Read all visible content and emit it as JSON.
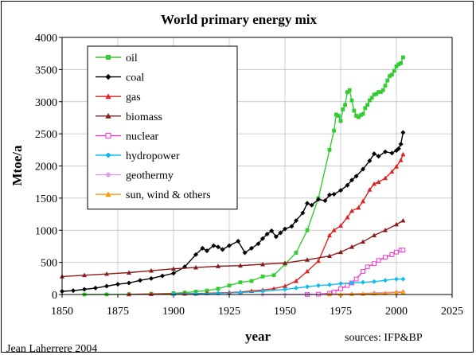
{
  "chart_data": {
    "type": "line",
    "title": "World primary energy mix",
    "xlabel": "year",
    "ylabel": "Mtoe/a",
    "xlim": [
      1850,
      2025
    ],
    "ylim": [
      0,
      4000
    ],
    "xticks": [
      1850,
      1875,
      1900,
      1925,
      1950,
      1975,
      2000,
      2025
    ],
    "yticks": [
      0,
      500,
      1000,
      1500,
      2000,
      2500,
      3000,
      3500,
      4000
    ],
    "grid": true,
    "legend_position": "top-left",
    "source_note": "sources: IFP&BP",
    "author_note": "Jean Laherrere 2004",
    "series": [
      {
        "name": "oil",
        "color": "#33cc33",
        "marker": "square",
        "x": [
          1860,
          1870,
          1880,
          1890,
          1900,
          1905,
          1910,
          1915,
          1920,
          1925,
          1930,
          1935,
          1940,
          1945,
          1950,
          1955,
          1960,
          1965,
          1970,
          1972,
          1973,
          1974,
          1975,
          1976,
          1977,
          1978,
          1979,
          1980,
          1981,
          1982,
          1983,
          1984,
          1985,
          1986,
          1987,
          1988,
          1989,
          1990,
          1991,
          1992,
          1993,
          1994,
          1995,
          1996,
          1997,
          1998,
          1999,
          2000,
          2001,
          2002,
          2003
        ],
        "y": [
          0,
          1,
          4,
          10,
          20,
          30,
          45,
          60,
          90,
          140,
          190,
          210,
          280,
          300,
          470,
          650,
          1000,
          1500,
          2250,
          2550,
          2800,
          2780,
          2700,
          2880,
          2950,
          3150,
          3180,
          3020,
          2860,
          2780,
          2760,
          2790,
          2810,
          2900,
          2950,
          3020,
          3060,
          3110,
          3120,
          3150,
          3150,
          3180,
          3250,
          3330,
          3400,
          3420,
          3480,
          3550,
          3580,
          3600,
          3690
        ]
      },
      {
        "name": "coal",
        "color": "#000000",
        "marker": "diamond",
        "x": [
          1850,
          1855,
          1860,
          1865,
          1870,
          1875,
          1880,
          1885,
          1890,
          1895,
          1900,
          1905,
          1910,
          1913,
          1915,
          1918,
          1920,
          1922,
          1925,
          1929,
          1932,
          1935,
          1938,
          1940,
          1942,
          1944,
          1946,
          1948,
          1950,
          1953,
          1955,
          1958,
          1960,
          1962,
          1965,
          1968,
          1970,
          1972,
          1975,
          1978,
          1980,
          1982,
          1985,
          1988,
          1990,
          1992,
          1995,
          1998,
          2000,
          2001,
          2002,
          2003
        ],
        "y": [
          50,
          60,
          80,
          100,
          130,
          160,
          180,
          220,
          250,
          290,
          330,
          430,
          620,
          720,
          680,
          760,
          740,
          700,
          760,
          830,
          650,
          720,
          790,
          870,
          940,
          990,
          900,
          960,
          1020,
          1060,
          1150,
          1270,
          1420,
          1390,
          1480,
          1460,
          1550,
          1560,
          1620,
          1700,
          1780,
          1840,
          1950,
          2080,
          2190,
          2150,
          2220,
          2200,
          2240,
          2270,
          2340,
          2520
        ]
      },
      {
        "name": "gas",
        "color": "#dd2222",
        "marker": "triangle",
        "x": [
          1880,
          1890,
          1900,
          1905,
          1910,
          1915,
          1920,
          1925,
          1930,
          1935,
          1940,
          1945,
          1950,
          1955,
          1960,
          1965,
          1970,
          1972,
          1975,
          1978,
          1980,
          1983,
          1985,
          1988,
          1990,
          1992,
          1995,
          1998,
          2000,
          2002,
          2003
        ],
        "y": [
          2,
          6,
          10,
          12,
          15,
          20,
          25,
          30,
          40,
          55,
          70,
          90,
          130,
          210,
          360,
          520,
          920,
          1000,
          1070,
          1200,
          1300,
          1350,
          1450,
          1630,
          1720,
          1750,
          1810,
          1910,
          1990,
          2090,
          2180
        ]
      },
      {
        "name": "biomass",
        "color": "#8b1a1a",
        "marker": "triangle",
        "x": [
          1850,
          1860,
          1870,
          1880,
          1890,
          1900,
          1910,
          1920,
          1930,
          1940,
          1950,
          1960,
          1970,
          1975,
          1980,
          1985,
          1990,
          1995,
          2000,
          2003
        ],
        "y": [
          280,
          300,
          320,
          340,
          370,
          400,
          420,
          440,
          450,
          470,
          490,
          540,
          600,
          660,
          740,
          820,
          920,
          1000,
          1090,
          1150
        ]
      },
      {
        "name": "nuclear",
        "color": "#ee33cc",
        "marker": "square-open",
        "x": [
          1960,
          1965,
          1970,
          1972,
          1975,
          1978,
          1980,
          1982,
          1985,
          1987,
          1990,
          1992,
          1995,
          1998,
          2000,
          2002,
          2003
        ],
        "y": [
          1,
          5,
          20,
          40,
          90,
          140,
          180,
          240,
          360,
          430,
          480,
          530,
          580,
          620,
          660,
          690,
          690
        ]
      },
      {
        "name": "hydropower",
        "color": "#11bbee",
        "marker": "diamond",
        "x": [
          1900,
          1910,
          1920,
          1930,
          1940,
          1950,
          1955,
          1960,
          1965,
          1970,
          1975,
          1980,
          1985,
          1990,
          1995,
          2000,
          2003
        ],
        "y": [
          5,
          10,
          20,
          30,
          50,
          80,
          100,
          120,
          140,
          150,
          170,
          180,
          190,
          200,
          220,
          240,
          240
        ]
      },
      {
        "name": "geothermy",
        "color": "#dd99ee",
        "marker": "diamond",
        "x": [
          1940,
          1950,
          1960,
          1970,
          1980,
          1990,
          2000,
          2003
        ],
        "y": [
          0,
          1,
          3,
          5,
          10,
          25,
          40,
          45
        ]
      },
      {
        "name": "sun, wind & others",
        "color": "#ff9900",
        "marker": "triangle",
        "x": [
          1970,
          1975,
          1980,
          1985,
          1990,
          1995,
          2000,
          2003
        ],
        "y": [
          2,
          4,
          6,
          10,
          15,
          20,
          30,
          35
        ]
      }
    ]
  }
}
